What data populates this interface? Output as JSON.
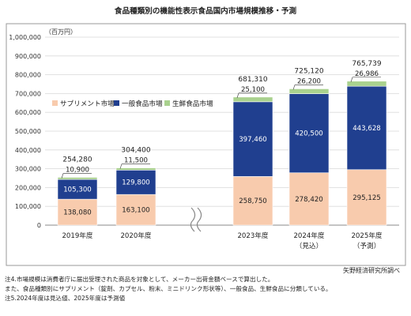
{
  "chart_data": {
    "type": "bar",
    "stacked": true,
    "title": "食品種類別の機能性表示食品国内市場規模推移・予測",
    "ylabel": "（百万円）",
    "ylim": [
      0,
      1000000
    ],
    "yticks": [
      "0",
      "100,000",
      "200,000",
      "300,000",
      "400,000",
      "500,000",
      "600,000",
      "700,000",
      "800,000",
      "900,000",
      "1,000,000"
    ],
    "grid": true,
    "legend_position": "middle-left",
    "axis_break": true,
    "categories": [
      "2019年度",
      "2020年度",
      "2023年度",
      "2024年度",
      "2025年度"
    ],
    "category_sublabels": [
      "",
      "",
      "",
      "（見込）",
      "（予測）"
    ],
    "series": [
      {
        "name": "サプリメント市場",
        "color": "#f8cbad",
        "values": [
          138080,
          163100,
          258750,
          278420,
          295125
        ]
      },
      {
        "name": "一般食品市場",
        "color": "#203f8f",
        "values": [
          105300,
          129800,
          397460,
          420500,
          443628
        ]
      },
      {
        "name": "生鮮食品市場",
        "color": "#a9d18e",
        "values": [
          10900,
          11500,
          25100,
          26200,
          26986
        ]
      }
    ],
    "totals": [
      254280,
      304400,
      681310,
      725120,
      765739
    ]
  },
  "source": "矢野経済研究所調べ",
  "notes": [
    "注4.市場規模は消費者庁に届出受理された商品を対象として、メーカー出荷金額ベースで算出した。",
    "また、食品種類別にサプリメント（錠剤、カプセル、粉末、ミニドリンク形状等）、一般食品、生鮮食品に分類している。",
    "注5.2024年度は見込値、2025年度は予測値"
  ]
}
